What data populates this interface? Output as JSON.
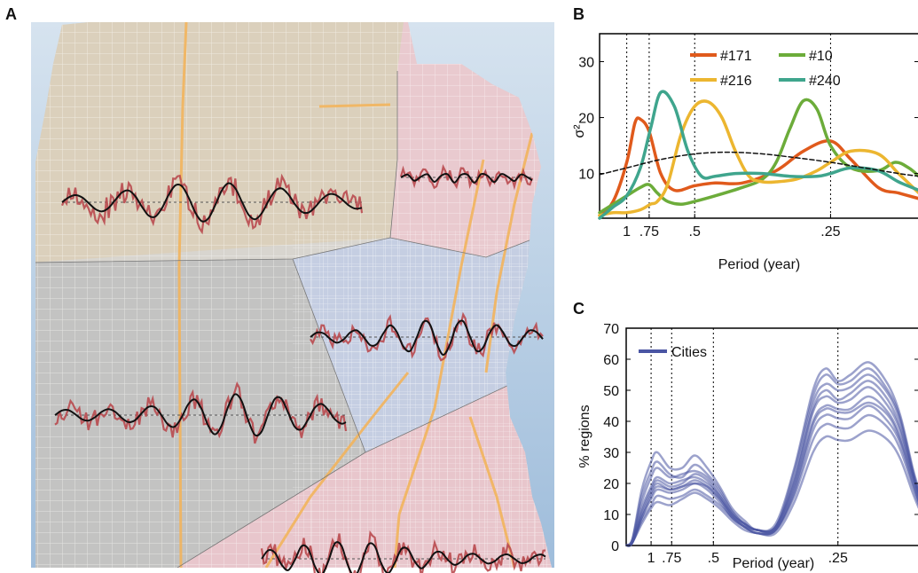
{
  "panels": {
    "a": {
      "label": "A"
    },
    "b": {
      "label": "B"
    },
    "c": {
      "label": "C"
    }
  },
  "colors": {
    "signal_red": "#b94a4f",
    "trend_black": "#111111",
    "street_line": "#ffffff",
    "highway": "#f2b45c",
    "water": "#b7cfe6",
    "land": "#d8d5cf",
    "region_tan": "#dccfb9",
    "region_pink": "#ecc8cf",
    "region_gray": "#bfbfbf",
    "region_blue": "#c3cde3",
    "region_pink_south": "#ebc3cb",
    "cities_blue": "#4a55a3"
  },
  "chart_data": [
    {
      "panel": "A",
      "type": "map",
      "regions": [
        "region_tan",
        "region_pink",
        "region_gray",
        "region_blue",
        "region_pink_south"
      ],
      "series_count": 5
    },
    {
      "panel": "B",
      "type": "line",
      "xlabel": "Period (year)",
      "ylabel": "σ²",
      "ylim": [
        2,
        35
      ],
      "x_ticks": [
        {
          "label": "1",
          "position": 1.0
        },
        {
          "label": ".75",
          "position": 1.33
        },
        {
          "label": ".5",
          "position": 2.0
        },
        {
          "label": ".25",
          "position": 4.0
        }
      ],
      "y_ticks": [
        10,
        20,
        30
      ],
      "xlim": [
        0.6,
        5.3
      ],
      "vertical_dotted_at": [
        1.0,
        1.33,
        2.0,
        4.0
      ],
      "legend_position": "top",
      "series": [
        {
          "name": "#171",
          "color": "#e05a1c",
          "x": [
            0.6,
            0.8,
            1.0,
            1.12,
            1.2,
            1.33,
            1.5,
            1.7,
            2.0,
            2.3,
            2.7,
            3.2,
            3.6,
            4.0,
            4.3,
            4.7,
            5.0,
            5.3
          ],
          "y": [
            2.5,
            5.0,
            12.0,
            19.0,
            19.7,
            17.5,
            10.0,
            7.0,
            7.8,
            8.3,
            8.3,
            10.5,
            14.0,
            15.8,
            12.5,
            7.5,
            6.5,
            5.5
          ]
        },
        {
          "name": "#10",
          "color": "#6cac3a",
          "x": [
            0.6,
            0.8,
            1.0,
            1.2,
            1.33,
            1.45,
            1.6,
            1.8,
            2.0,
            2.3,
            2.7,
            3.0,
            3.2,
            3.4,
            3.6,
            3.8,
            4.0,
            4.3,
            4.7,
            4.95,
            5.15,
            5.3
          ],
          "y": [
            3.0,
            4.5,
            6.0,
            7.5,
            8.0,
            6.5,
            5.0,
            4.5,
            5.0,
            6.0,
            7.5,
            9.0,
            12.0,
            18.0,
            23.0,
            21.5,
            15.0,
            11.0,
            10.5,
            12.0,
            11.0,
            9.5
          ]
        },
        {
          "name": "#216",
          "color": "#ecb630",
          "x": [
            0.6,
            0.8,
            1.0,
            1.2,
            1.35,
            1.45,
            1.6,
            1.8,
            2.0,
            2.2,
            2.4,
            2.6,
            2.8,
            3.0,
            3.2,
            3.5,
            3.8,
            4.0,
            4.3,
            4.7,
            5.0,
            5.3
          ],
          "y": [
            2.5,
            3.0,
            3.0,
            3.5,
            4.5,
            5.0,
            8.0,
            17.0,
            22.0,
            22.8,
            20.0,
            14.0,
            9.5,
            8.5,
            8.5,
            9.0,
            10.5,
            12.0,
            14.0,
            13.5,
            10.0,
            6.5
          ]
        },
        {
          "name": "#240",
          "color": "#3fa58d",
          "x": [
            0.6,
            0.8,
            1.0,
            1.2,
            1.35,
            1.5,
            1.7,
            1.9,
            2.1,
            2.3,
            2.6,
            3.0,
            3.4,
            3.8,
            4.0,
            4.3,
            4.7,
            5.0,
            5.3
          ],
          "y": [
            2.0,
            4.0,
            6.0,
            11.0,
            18.0,
            24.5,
            22.0,
            14.0,
            9.5,
            9.5,
            10.0,
            10.0,
            9.5,
            9.5,
            10.0,
            11.0,
            10.5,
            8.5,
            7.0
          ]
        },
        {
          "name": "",
          "color": "#111111",
          "dashed": true,
          "x": [
            0.6,
            1.0,
            1.5,
            2.0,
            2.5,
            3.0,
            3.5,
            4.0,
            4.5,
            5.0,
            5.3
          ],
          "y": [
            9.8,
            11.0,
            12.5,
            13.5,
            13.8,
            13.5,
            12.8,
            12.0,
            11.0,
            10.0,
            9.5
          ]
        }
      ]
    },
    {
      "panel": "C",
      "type": "line",
      "xlabel": "Period (year)",
      "ylabel": "% regions",
      "ylim": [
        0,
        70
      ],
      "y_ticks": [
        0,
        10,
        20,
        30,
        40,
        50,
        60,
        70
      ],
      "x_ticks": [
        {
          "label": "1",
          "position": 1.0
        },
        {
          "label": ".75",
          "position": 1.33
        },
        {
          "label": ".5",
          "position": 2.0
        },
        {
          "label": ".25",
          "position": 4.0
        }
      ],
      "xlim": [
        0.6,
        5.3
      ],
      "vertical_dotted_at": [
        1.0,
        1.33,
        2.0,
        4.0
      ],
      "legend_position": "top-left",
      "legend": [
        "Cities"
      ],
      "series_color": "#4a55a3",
      "series": [
        {
          "x": [
            0.6,
            0.7,
            0.85,
            1.0,
            1.1,
            1.3,
            1.5,
            1.7,
            1.9,
            2.1,
            2.3,
            2.5,
            2.7,
            3.0,
            3.3,
            3.6,
            3.8,
            4.0,
            4.2,
            4.5,
            4.8,
            5.0,
            5.2,
            5.3
          ],
          "y": [
            0,
            2,
            18,
            27,
            30,
            25,
            25,
            29,
            25,
            19,
            12,
            8,
            5,
            7,
            25,
            50,
            57,
            53,
            55,
            59,
            52,
            42,
            25,
            18
          ]
        },
        {
          "x": [
            0.6,
            0.7,
            0.85,
            1.0,
            1.1,
            1.3,
            1.5,
            1.7,
            1.9,
            2.1,
            2.3,
            2.5,
            2.7,
            3.0,
            3.3,
            3.6,
            3.8,
            4.0,
            4.2,
            4.5,
            4.8,
            5.0,
            5.2,
            5.3
          ],
          "y": [
            0,
            2,
            14,
            22,
            25,
            22,
            23,
            24,
            22,
            17,
            11,
            7,
            5,
            6,
            22,
            46,
            52,
            50,
            51,
            55,
            49,
            40,
            24,
            17
          ]
        },
        {
          "x": [
            0.6,
            0.7,
            0.85,
            1.0,
            1.1,
            1.3,
            1.5,
            1.7,
            1.9,
            2.1,
            2.3,
            2.5,
            2.7,
            3.0,
            3.3,
            3.6,
            3.8,
            4.0,
            4.2,
            4.5,
            4.8,
            5.0,
            5.2,
            5.3
          ],
          "y": [
            0,
            1,
            12,
            19,
            22,
            20,
            21,
            22,
            20,
            16,
            10,
            7,
            5,
            6,
            20,
            43,
            48,
            46,
            47,
            51,
            45,
            37,
            23,
            16
          ]
        },
        {
          "x": [
            0.6,
            0.7,
            0.85,
            1.0,
            1.1,
            1.3,
            1.5,
            1.7,
            1.9,
            2.1,
            2.3,
            2.5,
            2.7,
            3.0,
            3.3,
            3.6,
            3.8,
            4.0,
            4.2,
            4.5,
            4.8,
            5.0,
            5.2,
            5.3
          ],
          "y": [
            0,
            1,
            10,
            17,
            20,
            18,
            19,
            21,
            19,
            15,
            10,
            6,
            5,
            5,
            19,
            40,
            45,
            44,
            44,
            48,
            43,
            35,
            22,
            15
          ]
        },
        {
          "x": [
            0.6,
            0.7,
            0.85,
            1.0,
            1.1,
            1.3,
            1.5,
            1.7,
            1.9,
            2.1,
            2.3,
            2.5,
            2.7,
            3.0,
            3.3,
            3.6,
            3.8,
            4.0,
            4.2,
            4.5,
            4.8,
            5.0,
            5.2,
            5.3
          ],
          "y": [
            0,
            1,
            9,
            15,
            18,
            17,
            18,
            20,
            18,
            14,
            9,
            6,
            4,
            5,
            17,
            37,
            42,
            41,
            41,
            45,
            40,
            33,
            20,
            14
          ]
        },
        {
          "x": [
            0.6,
            0.7,
            0.85,
            1.0,
            1.1,
            1.3,
            1.5,
            1.7,
            1.9,
            2.1,
            2.3,
            2.5,
            2.7,
            3.0,
            3.3,
            3.6,
            3.8,
            4.0,
            4.2,
            4.5,
            4.8,
            5.0,
            5.2,
            5.3
          ],
          "y": [
            0,
            1,
            8,
            13,
            16,
            15,
            16,
            18,
            16,
            13,
            9,
            6,
            4,
            5,
            16,
            34,
            39,
            38,
            38,
            42,
            38,
            31,
            19,
            13
          ]
        },
        {
          "x": [
            0.6,
            0.7,
            0.85,
            1.0,
            1.1,
            1.3,
            1.5,
            1.7,
            1.9,
            2.1,
            2.3,
            2.5,
            2.7,
            3.0,
            3.3,
            3.6,
            3.8,
            4.0,
            4.2,
            4.5,
            4.8,
            5.0,
            5.2,
            5.3
          ],
          "y": [
            0,
            1,
            7,
            12,
            14,
            13,
            15,
            17,
            15,
            12,
            8,
            5,
            4,
            4,
            14,
            30,
            35,
            34,
            34,
            37,
            34,
            28,
            17,
            12
          ]
        },
        {
          "x": [
            0.6,
            0.7,
            0.85,
            1.0,
            1.1,
            1.3,
            1.5,
            1.7,
            1.9,
            2.1,
            2.3,
            2.5,
            2.7,
            3.0,
            3.3,
            3.6,
            3.8,
            4.0,
            4.2,
            4.5,
            4.8,
            5.0,
            5.2,
            5.3
          ],
          "y": [
            0,
            2,
            16,
            24,
            27,
            23,
            22,
            26,
            23,
            18,
            11,
            7,
            5,
            6,
            24,
            48,
            55,
            52,
            53,
            57,
            50,
            41,
            24,
            17
          ]
        },
        {
          "x": [
            0.6,
            0.7,
            0.85,
            1.0,
            1.1,
            1.3,
            1.5,
            1.7,
            1.9,
            2.1,
            2.3,
            2.5,
            2.7,
            3.0,
            3.3,
            3.6,
            3.8,
            4.0,
            4.2,
            4.5,
            4.8,
            5.0,
            5.2,
            5.3
          ],
          "y": [
            0,
            1,
            11,
            18,
            21,
            19,
            20,
            23,
            21,
            16,
            10,
            7,
            5,
            6,
            21,
            44,
            50,
            47,
            49,
            53,
            47,
            38,
            23,
            16
          ]
        },
        {
          "x": [
            0.6,
            0.7,
            0.85,
            1.0,
            1.1,
            1.3,
            1.5,
            1.7,
            1.9,
            2.1,
            2.3,
            2.5,
            2.7,
            3.0,
            3.3,
            3.6,
            3.8,
            4.0,
            4.2,
            4.5,
            4.8,
            5.0,
            5.2,
            5.3
          ],
          "y": [
            0,
            1,
            9,
            16,
            19,
            18,
            19,
            20,
            19,
            15,
            9,
            6,
            4,
            5,
            18,
            39,
            44,
            43,
            43,
            46,
            42,
            34,
            21,
            14
          ]
        }
      ]
    }
  ]
}
